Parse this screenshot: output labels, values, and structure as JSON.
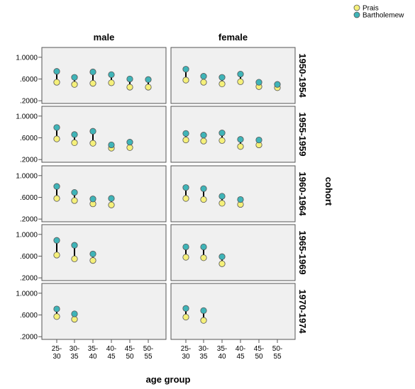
{
  "chart_data": {
    "type": "scatter",
    "title": "",
    "xlabel": "age group",
    "ylabel": "",
    "row_facet_title": "cohort",
    "col_facets": [
      "male",
      "female"
    ],
    "row_facets": [
      "1950-1954",
      "1955-1959",
      "1960-1964",
      "1965-1969",
      "1970-1974"
    ],
    "categories": [
      [
        "25-",
        "30"
      ],
      [
        "30-",
        "35"
      ],
      [
        "35-",
        "40"
      ],
      [
        "40-",
        "45"
      ],
      [
        "45-",
        "50"
      ],
      [
        "50-",
        "55"
      ]
    ],
    "yticks": [
      ".2000",
      ".6000",
      "1.0000"
    ],
    "ylim": [
      0.15,
      1.18
    ],
    "grid": false,
    "legend_placement": "top-right",
    "series": [
      {
        "name": "Prais",
        "color": "#f5f07a",
        "panels": {
          "male": [
            [
              0.54,
              0.5,
              0.52,
              0.53,
              0.45,
              0.45
            ],
            [
              0.58,
              0.51,
              0.5,
              0.41,
              0.42,
              null
            ],
            [
              0.58,
              0.54,
              0.48,
              0.46,
              null,
              null
            ],
            [
              0.62,
              0.55,
              0.52,
              null,
              null,
              null
            ],
            [
              0.57,
              0.52,
              null,
              null,
              null,
              null
            ]
          ],
          "female": [
            [
              0.58,
              0.54,
              0.51,
              0.55,
              0.46,
              0.44
            ],
            [
              0.56,
              0.54,
              0.55,
              0.44,
              0.47,
              null
            ],
            [
              0.58,
              0.56,
              0.49,
              0.47,
              null,
              null
            ],
            [
              0.58,
              0.57,
              0.46,
              null,
              null,
              null
            ],
            [
              0.56,
              0.5,
              null,
              null,
              null,
              null
            ]
          ]
        }
      },
      {
        "name": "Bartholemew",
        "color": "#3fb4b8",
        "panels": {
          "male": [
            [
              0.74,
              0.63,
              0.73,
              0.68,
              0.6,
              0.59
            ],
            [
              0.79,
              0.66,
              0.72,
              0.47,
              0.52,
              null
            ],
            [
              0.8,
              0.69,
              0.57,
              0.58,
              null,
              null
            ],
            [
              0.89,
              0.8,
              0.64,
              null,
              null,
              null
            ],
            [
              0.71,
              0.62,
              null,
              null,
              null,
              null
            ]
          ],
          "female": [
            [
              0.78,
              0.65,
              0.63,
              0.69,
              0.54,
              0.5
            ],
            [
              0.68,
              0.65,
              0.69,
              0.57,
              0.56,
              null
            ],
            [
              0.78,
              0.76,
              0.62,
              0.56,
              null,
              null
            ],
            [
              0.77,
              0.77,
              0.59,
              null,
              null,
              null
            ],
            [
              0.72,
              0.68,
              null,
              null,
              null,
              null
            ]
          ]
        }
      }
    ]
  }
}
